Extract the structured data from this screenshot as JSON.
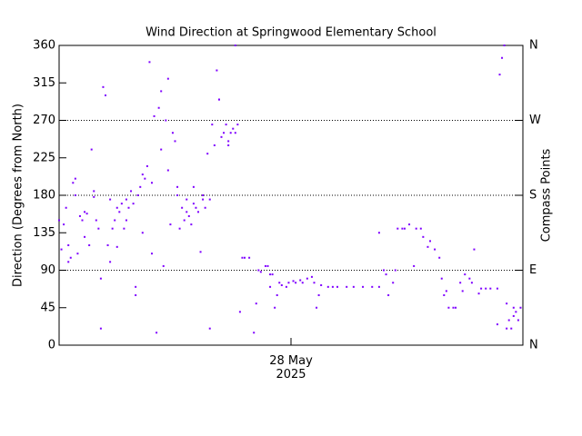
{
  "chart_data": {
    "type": "scatter",
    "title": "Wind Direction at Springwood Elementary School",
    "ylabel": "Direction (Degrees from North)",
    "y2label": "Compass Points",
    "xlim": [
      27,
      29
    ],
    "xticks": [
      {
        "value": 28,
        "label": "28 May\n2025"
      }
    ],
    "ylim": [
      0,
      360
    ],
    "yticks": [
      0,
      45,
      90,
      135,
      180,
      225,
      270,
      315,
      360
    ],
    "y2lim": [
      0,
      360
    ],
    "y2ticks": [
      {
        "value": 0,
        "label": "N"
      },
      {
        "value": 90,
        "label": "E"
      },
      {
        "value": 180,
        "label": "S"
      },
      {
        "value": 270,
        "label": "W"
      },
      {
        "value": 360,
        "label": "N"
      }
    ],
    "grid": true,
    "color": "#7f00ff",
    "x": [
      27.0,
      27.01,
      27.02,
      27.03,
      27.04,
      27.04,
      27.05,
      27.06,
      27.07,
      27.07,
      27.08,
      27.09,
      27.1,
      27.11,
      27.11,
      27.12,
      27.13,
      27.14,
      27.15,
      27.15,
      27.16,
      27.17,
      27.18,
      27.18,
      27.19,
      27.2,
      27.21,
      27.22,
      27.22,
      27.23,
      27.24,
      27.25,
      27.25,
      27.26,
      27.27,
      27.28,
      27.29,
      27.29,
      27.3,
      27.31,
      27.32,
      27.33,
      27.33,
      27.34,
      27.35,
      27.36,
      27.36,
      27.37,
      27.38,
      27.39,
      27.4,
      27.4,
      27.41,
      27.42,
      27.43,
      27.44,
      27.44,
      27.45,
      27.46,
      27.47,
      27.47,
      27.48,
      27.49,
      27.5,
      27.51,
      27.51,
      27.52,
      27.53,
      27.54,
      27.55,
      27.55,
      27.56,
      27.57,
      27.58,
      27.58,
      27.59,
      27.6,
      27.61,
      27.62,
      27.62,
      27.63,
      27.64,
      27.65,
      27.65,
      27.66,
      27.67,
      27.68,
      27.69,
      27.69,
      27.7,
      27.71,
      27.72,
      27.73,
      27.73,
      27.74,
      27.75,
      27.76,
      27.76,
      27.77,
      27.78,
      27.79,
      27.8,
      27.82,
      27.84,
      27.85,
      27.86,
      27.87,
      27.89,
      27.9,
      27.91,
      27.91,
      27.92,
      27.93,
      27.94,
      27.95,
      27.96,
      27.98,
      27.99,
      28.01,
      28.02,
      28.04,
      28.05,
      28.07,
      28.09,
      28.1,
      28.11,
      28.12,
      28.13,
      28.16,
      28.18,
      28.2,
      28.24,
      28.27,
      28.31,
      28.35,
      28.38,
      28.38,
      28.4,
      28.41,
      28.42,
      28.44,
      28.45,
      28.46,
      28.48,
      28.49,
      28.51,
      28.53,
      28.54,
      28.56,
      28.57,
      28.59,
      28.6,
      28.62,
      28.64,
      28.65,
      28.66,
      28.67,
      28.68,
      28.7,
      28.71,
      28.73,
      28.74,
      28.75,
      28.77,
      28.78,
      28.79,
      28.81,
      28.82,
      28.84,
      28.86,
      28.89,
      28.89,
      28.9,
      28.91,
      28.92,
      28.93,
      28.93,
      28.94,
      28.95,
      28.96,
      28.96,
      28.97,
      28.98,
      28.99
    ],
    "values": [
      150,
      115,
      145,
      165,
      100,
      120,
      105,
      195,
      200,
      180,
      110,
      155,
      150,
      130,
      160,
      158,
      120,
      235,
      185,
      178,
      150,
      140,
      80,
      20,
      310,
      300,
      120,
      100,
      175,
      140,
      150,
      118,
      165,
      160,
      170,
      140,
      150,
      175,
      165,
      185,
      170,
      60,
      70,
      180,
      190,
      205,
      135,
      200,
      215,
      340,
      110,
      195,
      275,
      15,
      285,
      235,
      305,
      95,
      270,
      210,
      320,
      145,
      255,
      245,
      180,
      190,
      140,
      165,
      150,
      160,
      175,
      155,
      145,
      190,
      170,
      165,
      160,
      112,
      175,
      180,
      165,
      230,
      175,
      20,
      265,
      240,
      330,
      295,
      295,
      250,
      255,
      265,
      240,
      245,
      255,
      260,
      255,
      360,
      265,
      40,
      105,
      105,
      105,
      15,
      50,
      90,
      88,
      95,
      95,
      85,
      70,
      85,
      45,
      60,
      75,
      72,
      70,
      75,
      77,
      75,
      78,
      75,
      80,
      82,
      75,
      45,
      60,
      72,
      70,
      70,
      70,
      70,
      70,
      70,
      70,
      70,
      135,
      90,
      85,
      60,
      75,
      90,
      140,
      140,
      140,
      145,
      95,
      140,
      140,
      130,
      118,
      125,
      115,
      105,
      80,
      60,
      65,
      45,
      45,
      45,
      75,
      65,
      85,
      80,
      75,
      115,
      62,
      68,
      68,
      68,
      68,
      25,
      325,
      345,
      360,
      20,
      50,
      30,
      20,
      45,
      35,
      40,
      30,
      45
    ]
  }
}
